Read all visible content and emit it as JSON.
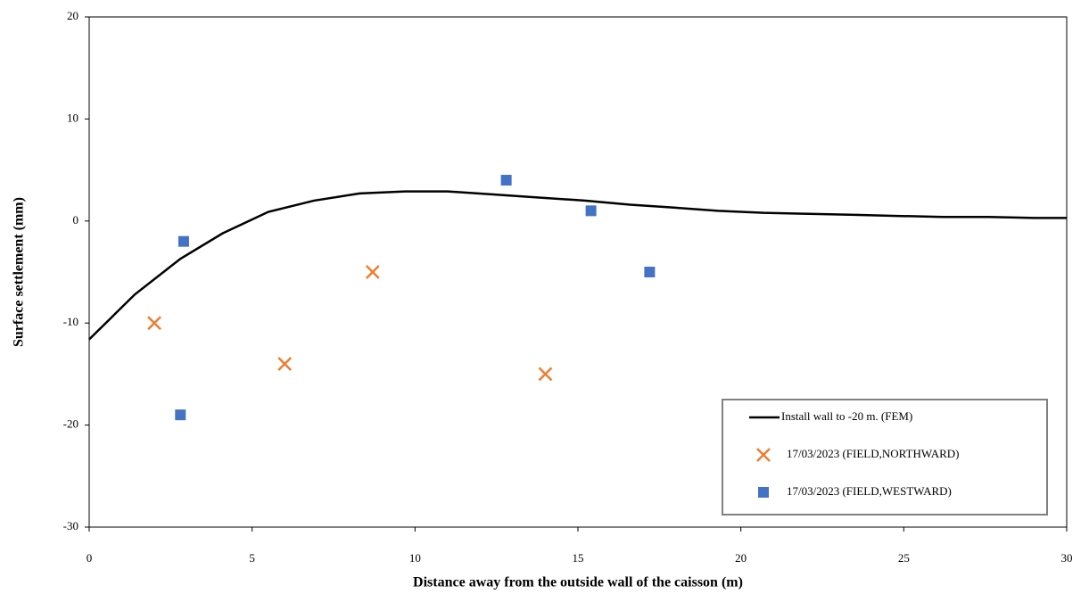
{
  "chart_data": {
    "type": "scatter",
    "xlabel": "Distance away from the outside wall of the caisson (m)",
    "ylabel": "Surface settlement (mm)",
    "xlim": [
      0,
      30
    ],
    "xticks": [
      0,
      5,
      10,
      15,
      20,
      25,
      30
    ],
    "ylim": [
      -30,
      20
    ],
    "yticks": [
      -30,
      -20,
      -10,
      0,
      10,
      20
    ],
    "legend": "lower right",
    "series": [
      {
        "name": "Install wall to -20 m.  (FEM)",
        "type": "line",
        "color": "#000000",
        "x": [
          0,
          1.4,
          2.8,
          4.1,
          5.5,
          6.9,
          8.3,
          9.7,
          11,
          12.4,
          13.8,
          15.2,
          16.6,
          18,
          19.3,
          20.7,
          22.1,
          23.5,
          24.8,
          26.2,
          27.6,
          29,
          30
        ],
        "values": [
          -11.6,
          -7.2,
          -3.7,
          -1.2,
          0.9,
          2.0,
          2.7,
          2.9,
          2.9,
          2.6,
          2.3,
          2.0,
          1.6,
          1.3,
          1.0,
          0.8,
          0.7,
          0.6,
          0.5,
          0.4,
          0.4,
          0.3,
          0.3
        ]
      },
      {
        "name": "17/03/2023 (FIELD,NORTHWARD)",
        "type": "scatter",
        "marker": "x",
        "color": "#ed7d31",
        "x": [
          2,
          6,
          8.7,
          14
        ],
        "values": [
          -10,
          -14,
          -5,
          -15
        ]
      },
      {
        "name": "17/03/2023 (FIELD,WESTWARD)",
        "type": "scatter",
        "marker": "square",
        "color": "#4472c4",
        "x": [
          2.9,
          2.8,
          12.8,
          15.4,
          17.2
        ],
        "values": [
          -2,
          -19,
          4,
          1,
          -5
        ]
      }
    ]
  }
}
